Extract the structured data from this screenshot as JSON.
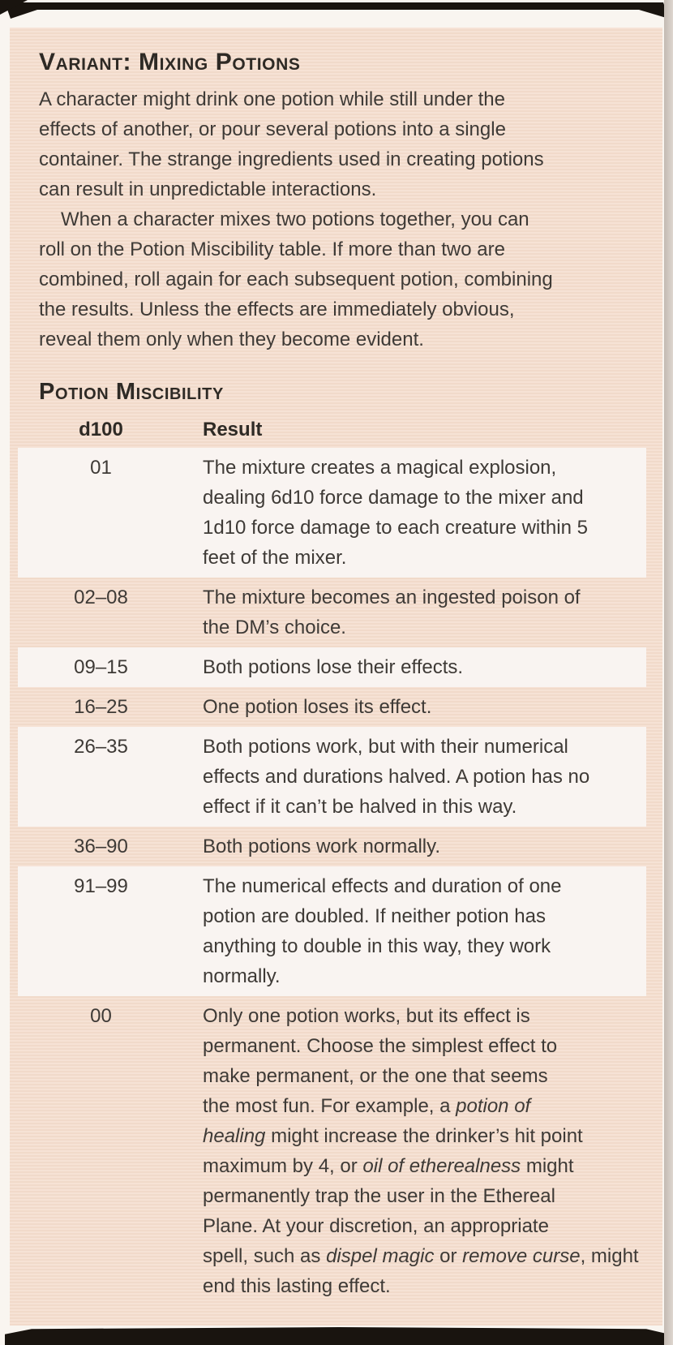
{
  "colors": {
    "panel_bg": "#f5dfd0",
    "row_highlight": "#f9f4f1",
    "ribbon": "#19140f",
    "text": "#3e3a36",
    "heading": "#2e2a25",
    "page_bg": "#f9f5f0",
    "edge_shadow": "#c3bab2"
  },
  "panel": {
    "title": "Variant: Mixing Potions",
    "paragraphs": [
      [
        "A character might drink one potion while still under the",
        "effects of another, or pour several potions into a single",
        "container. The strange ingredients used in creating potions",
        "can result in unpredictable interactions."
      ],
      [
        "When a character mixes two potions together, you can",
        "roll on the Potion Miscibility table. If more than two are",
        "combined, roll again for each subsequent potion, combining",
        "the results. Unless the effects are immediately obvious,",
        "reveal them only when they become evident."
      ]
    ],
    "table": {
      "title": "Potion Miscibility",
      "columns": [
        "d100",
        "Result"
      ],
      "rows": [
        {
          "roll": "01",
          "highlight": true,
          "result_runs": [
            {
              "t": "The mixture creates a magical explosion,\ndealing 6d10 force damage to the mixer and\n1d10 force damage to each creature within 5\nfeet of the mixer."
            }
          ]
        },
        {
          "roll": "02–08",
          "highlight": false,
          "result_runs": [
            {
              "t": "The mixture becomes an ingested poison of\nthe DM’s choice."
            }
          ]
        },
        {
          "roll": "09–15",
          "highlight": true,
          "result_runs": [
            {
              "t": "Both potions lose their effects."
            }
          ]
        },
        {
          "roll": "16–25",
          "highlight": false,
          "result_runs": [
            {
              "t": "One potion loses its effect."
            }
          ]
        },
        {
          "roll": "26–35",
          "highlight": true,
          "result_runs": [
            {
              "t": "Both potions work, but with their numerical\neffects and durations halved. A potion has no\neffect if it can’t be halved in this way."
            }
          ]
        },
        {
          "roll": "36–90",
          "highlight": false,
          "result_runs": [
            {
              "t": "Both potions work normally."
            }
          ]
        },
        {
          "roll": "91–99",
          "highlight": true,
          "result_runs": [
            {
              "t": "The numerical effects and duration of one\npotion are doubled. If neither potion has\nanything to double in this way, they work\nnormally."
            }
          ]
        },
        {
          "roll": "00",
          "highlight": false,
          "result_runs": [
            {
              "t": "Only one potion works, but its effect is\npermanent. Choose the simplest effect to\nmake permanent, or the one that seems\nthe most fun. For example, a "
            },
            {
              "t": "potion of\nhealing",
              "i": true
            },
            {
              "t": " might increase the drinker’s hit point\nmaximum by 4, or "
            },
            {
              "t": "oil of etherealness",
              "i": true
            },
            {
              "t": " might\npermanently trap the user in the Ethereal\nPlane. At your discretion, an appropriate\nspell, such as "
            },
            {
              "t": "dispel magic",
              "i": true
            },
            {
              "t": " or "
            },
            {
              "t": "remove curse",
              "i": true
            },
            {
              "t": ", might end this lasting effect."
            }
          ]
        }
      ]
    }
  }
}
